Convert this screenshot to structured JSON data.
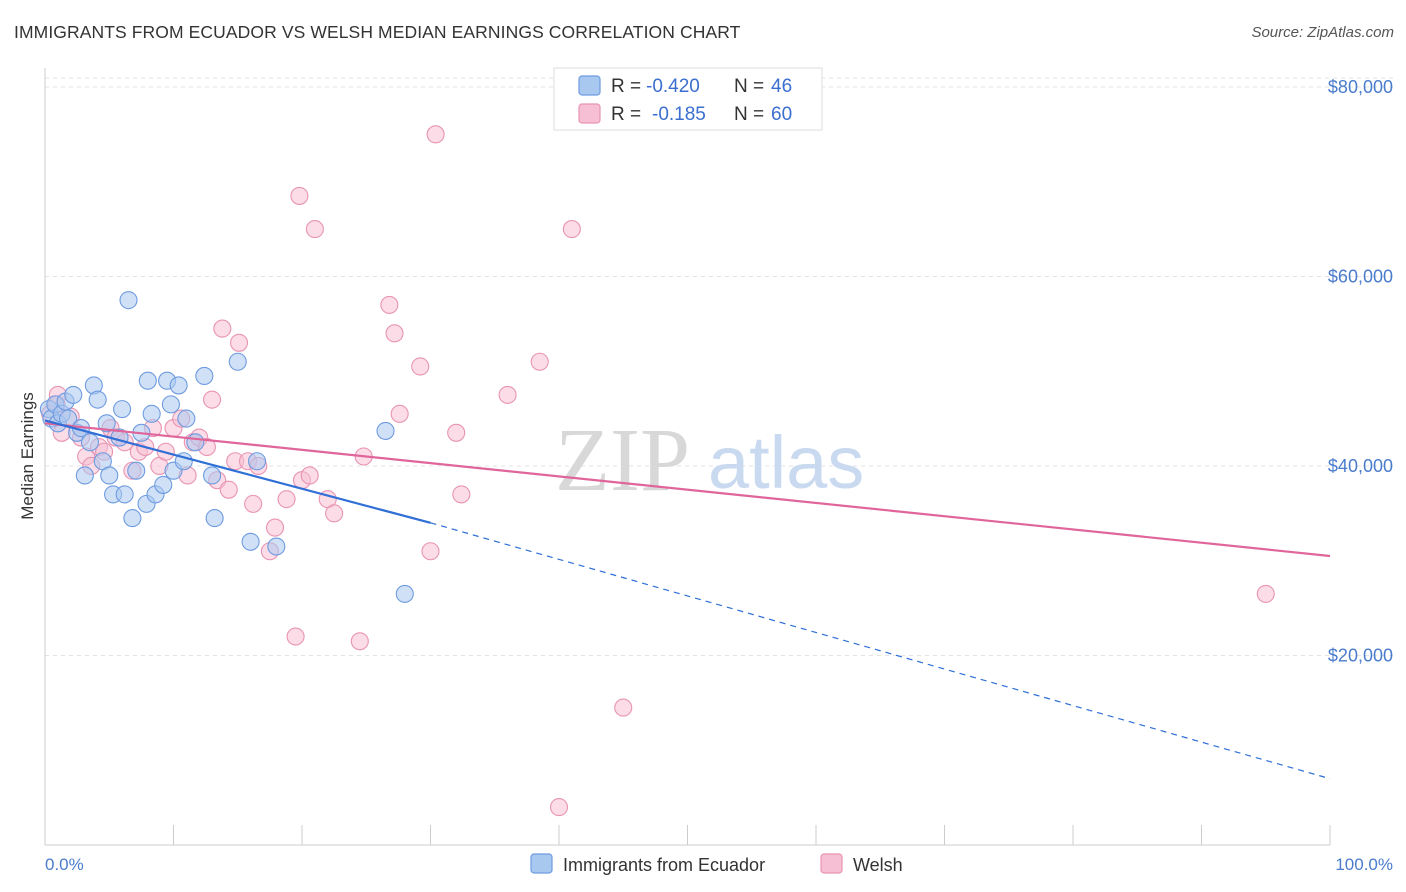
{
  "header": {
    "title": "IMMIGRANTS FROM ECUADOR VS WELSH MEDIAN EARNINGS CORRELATION CHART",
    "source": "Source: ZipAtlas.com"
  },
  "watermark": {
    "zip": "ZIP",
    "atlas": "atlas"
  },
  "legend": {
    "rows": [
      {
        "r_label": "R =",
        "r_value": "-0.420",
        "n_label": "N =",
        "n_value": "46"
      },
      {
        "r_label": "R =",
        "r_value": "-0.185",
        "n_label": "N =",
        "n_value": "60"
      }
    ]
  },
  "bottom_legend": {
    "items": [
      {
        "label": "Immigrants from Ecuador"
      },
      {
        "label": "Welsh"
      }
    ]
  },
  "colors": {
    "ecuador_fill": "#a9c8f0",
    "ecuador_stroke": "#6e9be0",
    "ecuador_line": "#2f6fd6",
    "welsh_fill": "#f7bfd3",
    "welsh_stroke": "#e894b3",
    "welsh_line": "#e0659a",
    "grid": "#e3e3e3",
    "tick_label": "#4a7ccc"
  },
  "chart_data": {
    "type": "scatter",
    "title": "IMMIGRANTS FROM ECUADOR VS WELSH MEDIAN EARNINGS CORRELATION CHART",
    "xlabel": "",
    "ylabel": "Median Earnings",
    "xlim": [
      0,
      100
    ],
    "ylim": [
      0,
      82000
    ],
    "x_tick_labels": [
      "0.0%",
      "100.0%"
    ],
    "y_ticks": [
      20000,
      40000,
      60000,
      80000
    ],
    "y_tick_labels": [
      "$20,000",
      "$40,000",
      "$60,000",
      "$80,000"
    ],
    "grid": true,
    "legend_position": "top-center",
    "series": [
      {
        "name": "Immigrants from Ecuador",
        "r": -0.42,
        "n": 46,
        "trend": {
          "x0": 0,
          "y0": 44800,
          "x1": 30,
          "y1": 34000,
          "dashed_to_x": 100,
          "dashed_to_y": 7000
        },
        "points": [
          [
            0.3,
            46000
          ],
          [
            0.5,
            45000
          ],
          [
            0.8,
            46500
          ],
          [
            1.0,
            44500
          ],
          [
            1.3,
            45500
          ],
          [
            1.6,
            46800
          ],
          [
            1.8,
            45000
          ],
          [
            2.2,
            47500
          ],
          [
            2.5,
            43500
          ],
          [
            2.8,
            44000
          ],
          [
            3.1,
            39000
          ],
          [
            3.5,
            42500
          ],
          [
            3.8,
            48500
          ],
          [
            4.1,
            47000
          ],
          [
            4.5,
            40500
          ],
          [
            4.8,
            44500
          ],
          [
            5.0,
            39000
          ],
          [
            5.3,
            37000
          ],
          [
            5.8,
            43000
          ],
          [
            6.0,
            46000
          ],
          [
            6.2,
            37000
          ],
          [
            6.5,
            57500
          ],
          [
            6.8,
            34500
          ],
          [
            7.1,
            39500
          ],
          [
            7.5,
            43500
          ],
          [
            7.9,
            36000
          ],
          [
            8.0,
            49000
          ],
          [
            8.3,
            45500
          ],
          [
            8.6,
            37000
          ],
          [
            9.2,
            38000
          ],
          [
            9.5,
            49000
          ],
          [
            9.8,
            46500
          ],
          [
            10.0,
            39500
          ],
          [
            10.4,
            48500
          ],
          [
            10.8,
            40500
          ],
          [
            11.0,
            45000
          ],
          [
            11.7,
            42500
          ],
          [
            12.4,
            49500
          ],
          [
            13.0,
            39000
          ],
          [
            13.2,
            34500
          ],
          [
            15.0,
            51000
          ],
          [
            16.0,
            32000
          ],
          [
            16.5,
            40500
          ],
          [
            18.0,
            31500
          ],
          [
            26.5,
            43700
          ],
          [
            28.0,
            26500
          ]
        ]
      },
      {
        "name": "Welsh",
        "r": -0.185,
        "n": 60,
        "trend": {
          "x0": 0,
          "y0": 44500,
          "x1": 100,
          "y1": 30500
        },
        "points": [
          [
            0.4,
            45500
          ],
          [
            1.0,
            47500
          ],
          [
            1.3,
            43500
          ],
          [
            2.0,
            45200
          ],
          [
            2.8,
            43000
          ],
          [
            3.2,
            41000
          ],
          [
            3.6,
            40000
          ],
          [
            4.2,
            42000
          ],
          [
            4.6,
            41500
          ],
          [
            5.1,
            44000
          ],
          [
            5.5,
            43000
          ],
          [
            6.2,
            42500
          ],
          [
            6.8,
            39500
          ],
          [
            7.3,
            41500
          ],
          [
            7.8,
            42000
          ],
          [
            8.4,
            44000
          ],
          [
            8.9,
            40000
          ],
          [
            9.4,
            41500
          ],
          [
            10.0,
            44000
          ],
          [
            10.6,
            45000
          ],
          [
            11.1,
            39000
          ],
          [
            11.5,
            42500
          ],
          [
            12.0,
            43000
          ],
          [
            12.6,
            42000
          ],
          [
            13.0,
            47000
          ],
          [
            13.4,
            38500
          ],
          [
            13.8,
            54500
          ],
          [
            14.3,
            37500
          ],
          [
            14.8,
            40500
          ],
          [
            15.1,
            53000
          ],
          [
            15.8,
            40500
          ],
          [
            16.2,
            36000
          ],
          [
            16.6,
            40000
          ],
          [
            17.5,
            31000
          ],
          [
            17.9,
            33500
          ],
          [
            18.8,
            36500
          ],
          [
            19.5,
            22000
          ],
          [
            19.8,
            68500
          ],
          [
            20.0,
            38500
          ],
          [
            20.6,
            39000
          ],
          [
            21.0,
            65000
          ],
          [
            22.0,
            36500
          ],
          [
            22.5,
            35000
          ],
          [
            24.5,
            21500
          ],
          [
            24.8,
            41000
          ],
          [
            26.8,
            57000
          ],
          [
            27.2,
            54000
          ],
          [
            27.6,
            45500
          ],
          [
            29.2,
            50500
          ],
          [
            30.0,
            31000
          ],
          [
            30.4,
            75000
          ],
          [
            32.0,
            43500
          ],
          [
            32.4,
            37000
          ],
          [
            36.0,
            47500
          ],
          [
            38.5,
            51000
          ],
          [
            40.0,
            4000
          ],
          [
            41.0,
            65000
          ],
          [
            45.0,
            14500
          ],
          [
            95.0,
            26500
          ],
          [
            0.9,
            46500
          ]
        ]
      }
    ]
  }
}
